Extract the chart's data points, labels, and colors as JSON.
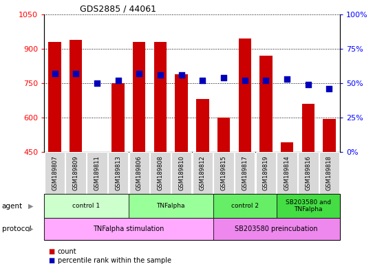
{
  "title": "GDS2885 / 44061",
  "samples": [
    "GSM189807",
    "GSM189809",
    "GSM189811",
    "GSM189813",
    "GSM189806",
    "GSM189808",
    "GSM189810",
    "GSM189812",
    "GSM189815",
    "GSM189817",
    "GSM189819",
    "GSM189814",
    "GSM189816",
    "GSM189818"
  ],
  "counts": [
    930,
    940,
    450,
    750,
    930,
    930,
    790,
    680,
    600,
    945,
    870,
    490,
    660,
    595
  ],
  "percentiles": [
    57,
    57,
    50,
    52,
    57,
    56,
    56,
    52,
    54,
    52,
    52,
    53,
    49,
    46
  ],
  "ylim_left": [
    450,
    1050
  ],
  "ylim_right": [
    0,
    100
  ],
  "yticks_left": [
    450,
    600,
    750,
    900,
    1050
  ],
  "yticks_right": [
    0,
    25,
    50,
    75,
    100
  ],
  "bar_color": "#cc0000",
  "dot_color": "#0000bb",
  "agent_groups": [
    {
      "label": "control 1",
      "start": 0,
      "end": 4,
      "color": "#ccffcc"
    },
    {
      "label": "TNFalpha",
      "start": 4,
      "end": 8,
      "color": "#99ff99"
    },
    {
      "label": "control 2",
      "start": 8,
      "end": 11,
      "color": "#66ee66"
    },
    {
      "label": "SB203580 and\nTNFalpha",
      "start": 11,
      "end": 14,
      "color": "#44dd44"
    }
  ],
  "protocol_groups": [
    {
      "label": "TNFalpha stimulation",
      "start": 0,
      "end": 8,
      "color": "#ffaaff"
    },
    {
      "label": "SB203580 preincubation",
      "start": 8,
      "end": 14,
      "color": "#ee88ee"
    }
  ],
  "legend_count_label": "count",
  "legend_pct_label": "percentile rank within the sample",
  "agent_label": "agent",
  "protocol_label": "protocol"
}
